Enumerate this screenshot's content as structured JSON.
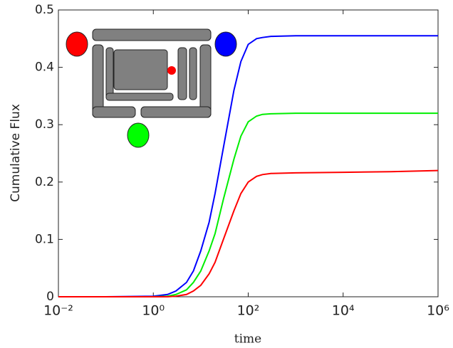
{
  "chart_data": {
    "type": "line",
    "xlabel": "time",
    "ylabel": "Cumulative Flux",
    "xscale": "log",
    "x": [
      0.01,
      0.1,
      1,
      2,
      3,
      5,
      7,
      10,
      15,
      20,
      30,
      50,
      70,
      100,
      150,
      200,
      300,
      1000,
      10000,
      100000,
      1000000
    ],
    "series": [
      {
        "color": "#0000ff",
        "values": [
          0,
          0,
          0.001,
          0.004,
          0.01,
          0.025,
          0.045,
          0.08,
          0.13,
          0.18,
          0.26,
          0.36,
          0.41,
          0.44,
          0.45,
          0.452,
          0.454,
          0.455,
          0.455,
          0.455,
          0.455
        ]
      },
      {
        "color": "#00ee00",
        "values": [
          0,
          0,
          0,
          0.001,
          0.004,
          0.012,
          0.025,
          0.045,
          0.08,
          0.11,
          0.17,
          0.24,
          0.28,
          0.305,
          0.315,
          0.318,
          0.319,
          0.32,
          0.32,
          0.32,
          0.32
        ]
      },
      {
        "color": "#ff0000",
        "values": [
          0,
          0,
          0,
          0,
          0.001,
          0.004,
          0.01,
          0.02,
          0.04,
          0.06,
          0.1,
          0.15,
          0.18,
          0.2,
          0.21,
          0.213,
          0.215,
          0.216,
          0.217,
          0.218,
          0.22
        ]
      }
    ],
    "xlim": [
      0.01,
      1000000
    ],
    "xticks": [
      {
        "value": 0.01,
        "label": "10⁻²"
      },
      {
        "value": 1,
        "label": "10⁰"
      },
      {
        "value": 100,
        "label": "10²"
      },
      {
        "value": 10000,
        "label": "10⁴"
      },
      {
        "value": 1000000,
        "label": "10⁶"
      }
    ],
    "ylim": [
      0,
      0.5
    ],
    "yticks": [
      0,
      0.1,
      0.2,
      0.3,
      0.4,
      0.5
    ]
  }
}
